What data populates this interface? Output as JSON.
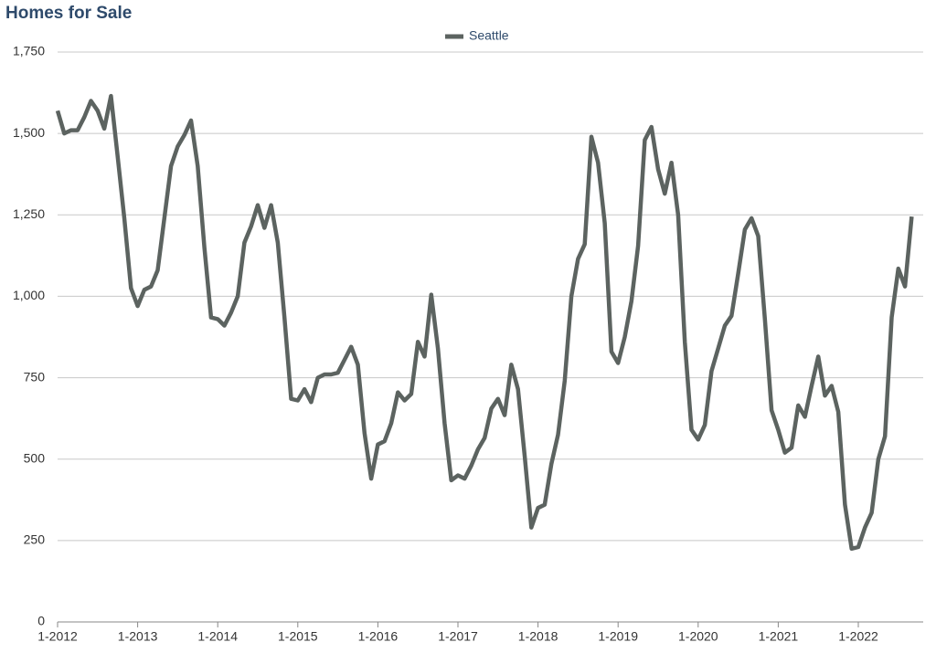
{
  "chart_data": {
    "type": "line",
    "title": "Homes for Sale",
    "categories": [
      "1-2012",
      null,
      null,
      null,
      null,
      null,
      null,
      null,
      null,
      null,
      null,
      null,
      "1-2013",
      null,
      null,
      null,
      null,
      null,
      null,
      null,
      null,
      null,
      null,
      null,
      "1-2014",
      null,
      null,
      null,
      null,
      null,
      null,
      null,
      null,
      null,
      null,
      null,
      "1-2015",
      null,
      null,
      null,
      null,
      null,
      null,
      null,
      null,
      null,
      null,
      null,
      "1-2016",
      null,
      null,
      null,
      null,
      null,
      null,
      null,
      null,
      null,
      null,
      null,
      "1-2017",
      null,
      null,
      null,
      null,
      null,
      null,
      null,
      null,
      null,
      null,
      null,
      "1-2018",
      null,
      null,
      null,
      null,
      null,
      null,
      null,
      null,
      null,
      null,
      null,
      "1-2019",
      null,
      null,
      null,
      null,
      null,
      null,
      null,
      null,
      null,
      null,
      null,
      "1-2020",
      null,
      null,
      null,
      null,
      null,
      null,
      null,
      null,
      null,
      null,
      null,
      "1-2021",
      null,
      null,
      null,
      null,
      null,
      null,
      null,
      null,
      null,
      null,
      null,
      "1-2022",
      null,
      null,
      null,
      null,
      null,
      null,
      null,
      null
    ],
    "series": [
      {
        "name": "Seattle",
        "color": "#5c6360",
        "values": [
          1570,
          1500,
          1510,
          1510,
          1550,
          1600,
          1570,
          1515,
          1615,
          1430,
          1240,
          1025,
          970,
          1020,
          1030,
          1080,
          1240,
          1400,
          1460,
          1495,
          1540,
          1400,
          1150,
          935,
          930,
          910,
          950,
          1000,
          1165,
          1215,
          1280,
          1210,
          1280,
          1165,
          935,
          685,
          680,
          715,
          675,
          750,
          760,
          760,
          765,
          805,
          845,
          790,
          580,
          440,
          545,
          555,
          610,
          705,
          680,
          700,
          860,
          815,
          1005,
          840,
          610,
          435,
          450,
          440,
          480,
          530,
          565,
          655,
          685,
          635,
          790,
          715,
          510,
          290,
          350,
          360,
          485,
          575,
          740,
          1000,
          1115,
          1160,
          1490,
          1410,
          1225,
          830,
          795,
          875,
          985,
          1155,
          1480,
          1520,
          1390,
          1315,
          1410,
          1250,
          860,
          590,
          560,
          605,
          770,
          840,
          910,
          940,
          1070,
          1205,
          1240,
          1185,
          930,
          650,
          590,
          520,
          535,
          665,
          630,
          725,
          815,
          695,
          725,
          645,
          360,
          225,
          230,
          290,
          335,
          500,
          570,
          935,
          1085,
          1030,
          1245
        ]
      }
    ],
    "ylim": [
      0,
      1750
    ],
    "yticks": [
      0,
      250,
      500,
      750,
      {
        "value": 1000,
        "label": "1,000"
      },
      {
        "value": 1250,
        "label": "1,250"
      },
      {
        "value": 1500,
        "label": "1,500"
      },
      {
        "value": 1750,
        "label": "1,750"
      }
    ],
    "grid": true,
    "legend": "top"
  }
}
